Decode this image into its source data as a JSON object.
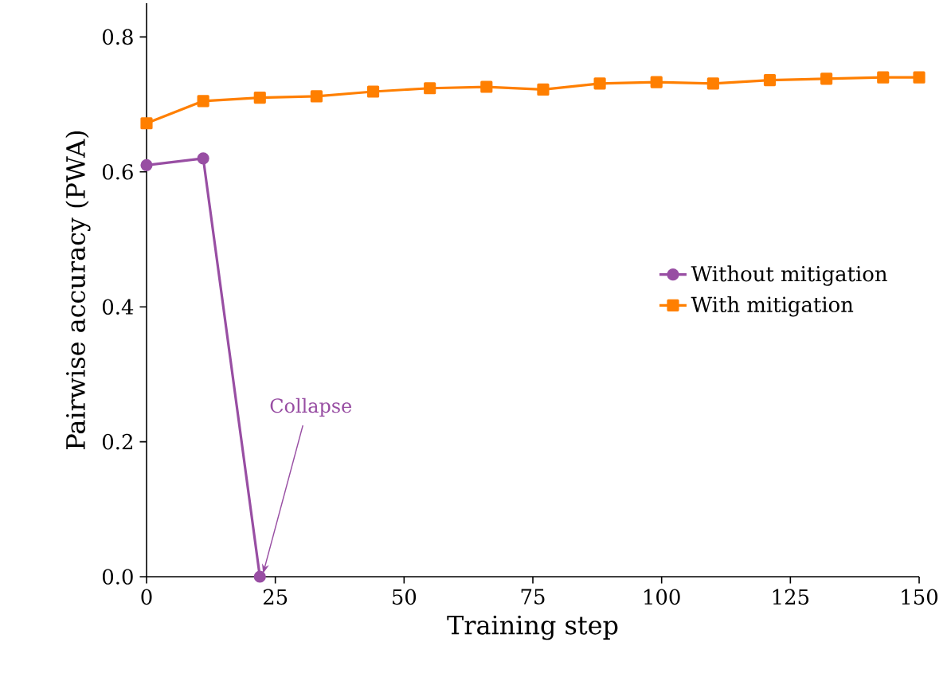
{
  "chart_data": {
    "type": "line",
    "xlabel": "Training step",
    "ylabel": "Pairwise accuracy (PWA)",
    "xlim": [
      0,
      150
    ],
    "ylim": [
      0,
      0.85
    ],
    "xticks": [
      0,
      25,
      50,
      75,
      100,
      125,
      150
    ],
    "yticks": [
      {
        "value": 0,
        "label": "0.0"
      },
      0.2,
      0.4,
      0.6,
      0.8
    ],
    "legend": "right",
    "grid": false,
    "line_style": "solid",
    "series": [
      {
        "name": "Without mitigation",
        "color": "#984ea3",
        "marker": "circle",
        "x": [
          0,
          11,
          22
        ],
        "values": [
          0.61,
          0.62,
          0.0
        ]
      },
      {
        "name": "With mitigation",
        "color": "#ff7f00",
        "marker": "square",
        "x": [
          0,
          11,
          22,
          33,
          44,
          55,
          66,
          77,
          88,
          99,
          110,
          121,
          132,
          143,
          150
        ],
        "values": [
          0.672,
          0.705,
          0.71,
          0.712,
          0.719,
          0.724,
          0.726,
          0.722,
          0.731,
          0.733,
          0.731,
          0.736,
          0.738,
          0.74,
          0.74
        ]
      }
    ],
    "annotations": [
      {
        "text": "Collapse",
        "x": 22,
        "y": 0.0
      }
    ]
  }
}
